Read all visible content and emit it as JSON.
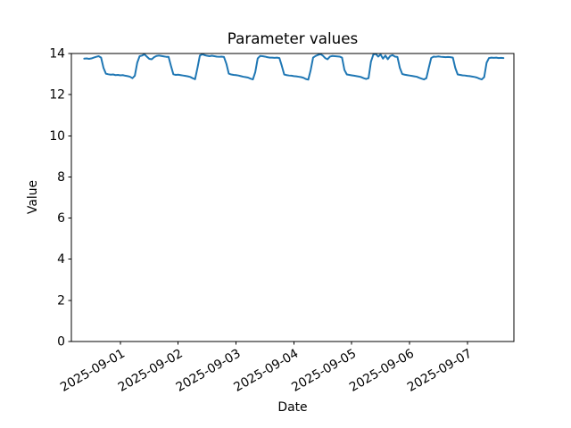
{
  "chart_data": {
    "type": "line",
    "title": "Parameter values",
    "xlabel": "Date",
    "ylabel": "Value",
    "ylim": [
      0,
      14
    ],
    "y_ticks": [
      0,
      2,
      4,
      6,
      8,
      10,
      12,
      14
    ],
    "x_ticks": [
      "2025-09-01",
      "2025-09-02",
      "2025-09-03",
      "2025-09-04",
      "2025-09-05",
      "2025-09-06",
      "2025-09-07"
    ],
    "xlim": [
      "2025-08-31 03:40",
      "2025-09-07 19:20"
    ],
    "x_tick_rotation_deg": 30,
    "grid": false,
    "legend_position": "none",
    "colors": {
      "line": "#1f77b4",
      "axis": "#000000",
      "background": "#ffffff"
    },
    "series": [
      {
        "name": "Parameter values",
        "x_start": "2025-08-31 09:00",
        "x_interval_hours": 1,
        "values": [
          13.75,
          13.76,
          13.74,
          13.76,
          13.8,
          13.84,
          13.87,
          13.8,
          13.3,
          13.02,
          12.99,
          12.97,
          12.98,
          12.95,
          12.96,
          12.94,
          12.95,
          12.92,
          12.9,
          12.87,
          12.8,
          12.92,
          13.55,
          13.87,
          13.9,
          13.96,
          13.85,
          13.74,
          13.72,
          13.82,
          13.88,
          13.9,
          13.88,
          13.86,
          13.84,
          13.84,
          13.4,
          12.99,
          12.96,
          12.97,
          12.95,
          12.93,
          12.91,
          12.89,
          12.86,
          12.8,
          12.75,
          13.3,
          13.9,
          13.96,
          13.92,
          13.89,
          13.87,
          13.89,
          13.87,
          13.85,
          13.84,
          13.85,
          13.83,
          13.5,
          13.02,
          12.98,
          12.96,
          12.95,
          12.93,
          12.9,
          12.87,
          12.85,
          12.83,
          12.78,
          12.74,
          13.1,
          13.76,
          13.88,
          13.87,
          13.85,
          13.82,
          13.8,
          13.8,
          13.79,
          13.8,
          13.78,
          13.4,
          12.98,
          12.95,
          12.93,
          12.92,
          12.9,
          12.89,
          12.87,
          12.85,
          12.82,
          12.76,
          12.73,
          13.2,
          13.8,
          13.88,
          13.93,
          13.97,
          13.9,
          13.78,
          13.72,
          13.85,
          13.88,
          13.87,
          13.86,
          13.85,
          13.8,
          13.2,
          12.98,
          12.96,
          12.94,
          12.92,
          12.9,
          12.88,
          12.85,
          12.8,
          12.76,
          12.8,
          13.6,
          13.95,
          13.98,
          13.85,
          13.95,
          13.75,
          13.9,
          13.72,
          13.88,
          13.92,
          13.85,
          13.83,
          13.3,
          13.0,
          12.97,
          12.95,
          12.93,
          12.91,
          12.89,
          12.87,
          12.82,
          12.78,
          12.74,
          12.8,
          13.3,
          13.78,
          13.85,
          13.84,
          13.86,
          13.84,
          13.83,
          13.82,
          13.83,
          13.82,
          13.8,
          13.3,
          12.98,
          12.96,
          12.94,
          12.93,
          12.91,
          12.9,
          12.88,
          12.86,
          12.83,
          12.78,
          12.74,
          12.85,
          13.55,
          13.78,
          13.8,
          13.79,
          13.8,
          13.78,
          13.79,
          13.78
        ]
      }
    ]
  }
}
